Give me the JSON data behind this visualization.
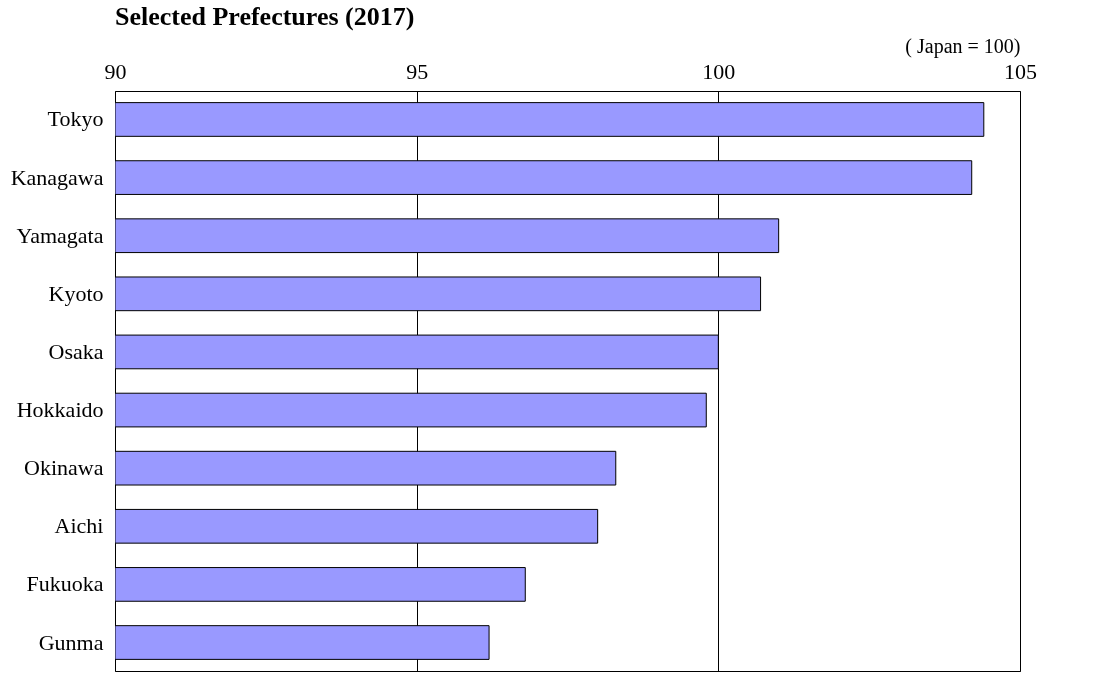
{
  "chart_data": {
    "type": "bar",
    "orientation": "horizontal",
    "title": "Selected Prefectures  (2017)",
    "xlabel": "( Japan = 100)",
    "categories": [
      "Tokyo",
      "Kanagawa",
      "Yamagata",
      "Kyoto",
      "Osaka",
      "Hokkaido",
      "Okinawa",
      "Aichi",
      "Fukuoka",
      "Gunma"
    ],
    "values": [
      104.4,
      104.2,
      101.0,
      100.7,
      100.0,
      99.8,
      98.3,
      98.0,
      96.8,
      96.2
    ],
    "color": "#9999ff",
    "xlim": [
      90,
      105
    ],
    "xticks": [
      90,
      95,
      100,
      105
    ],
    "grid": "x"
  }
}
